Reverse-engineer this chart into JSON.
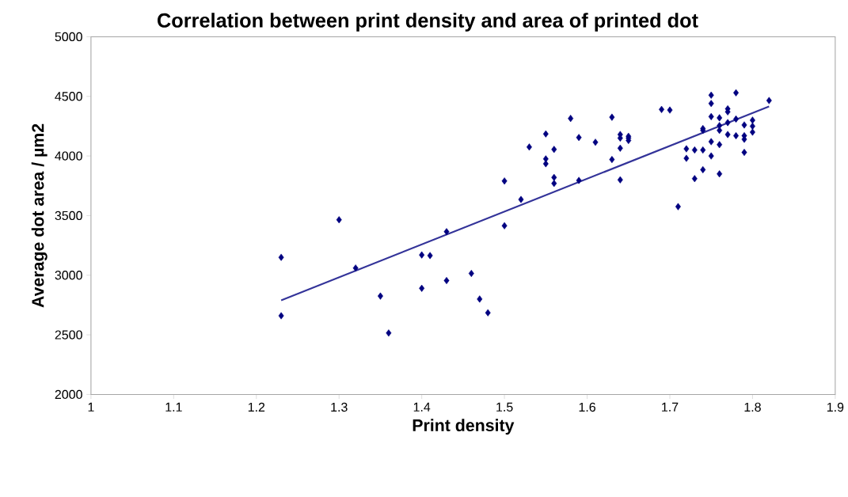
{
  "chart_data": {
    "type": "scatter",
    "title": "Correlation between print density and area of printed dot",
    "xlabel": "Print density",
    "ylabel": "Average dot area / µm2",
    "xlim": [
      1,
      1.9
    ],
    "ylim": [
      2000,
      5000
    ],
    "xticks": [
      1,
      1.1,
      1.2,
      1.3,
      1.4,
      1.5,
      1.6,
      1.7,
      1.8,
      1.9
    ],
    "yticks": [
      2000,
      2500,
      3000,
      3500,
      4000,
      4500,
      5000
    ],
    "series": [
      {
        "marker": "diamond",
        "color": "#000080",
        "x": [
          1.23,
          1.23,
          1.3,
          1.32,
          1.35,
          1.36,
          1.4,
          1.4,
          1.41,
          1.43,
          1.43,
          1.46,
          1.47,
          1.48,
          1.5,
          1.5,
          1.52,
          1.53,
          1.55,
          1.55,
          1.55,
          1.56,
          1.56,
          1.56,
          1.58,
          1.59,
          1.59,
          1.61,
          1.63,
          1.63,
          1.64,
          1.64,
          1.64,
          1.64,
          1.65,
          1.65,
          1.65,
          1.69,
          1.7,
          1.71,
          1.72,
          1.72,
          1.73,
          1.73,
          1.74,
          1.74,
          1.74,
          1.74,
          1.75,
          1.75,
          1.75,
          1.75,
          1.75,
          1.76,
          1.76,
          1.76,
          1.76,
          1.76,
          1.77,
          1.77,
          1.77,
          1.77,
          1.78,
          1.78,
          1.78,
          1.79,
          1.79,
          1.79,
          1.79,
          1.8,
          1.8,
          1.8,
          1.82
        ],
        "values": [
          3150,
          2660,
          3465,
          3060,
          2825,
          2515,
          3170,
          2890,
          3165,
          3365,
          2955,
          3015,
          2800,
          2685,
          3790,
          3415,
          3635,
          4075,
          4185,
          3975,
          3935,
          4055,
          3820,
          3770,
          4315,
          4155,
          3795,
          4115,
          4325,
          3970,
          4180,
          4150,
          4065,
          3800,
          4165,
          4150,
          4130,
          4390,
          4385,
          3575,
          4060,
          3980,
          4050,
          3810,
          4230,
          4215,
          4050,
          3885,
          4510,
          4440,
          4330,
          4120,
          4000,
          4320,
          4255,
          4215,
          4095,
          3850,
          4395,
          4370,
          4280,
          4180,
          4530,
          4310,
          4170,
          4260,
          4170,
          4140,
          4030,
          4300,
          4250,
          4200,
          4465
        ]
      },
      {
        "type": "line",
        "marker": "none",
        "color": "#333399",
        "x": [
          1.23,
          1.82
        ],
        "values": [
          2790,
          4415
        ]
      }
    ]
  }
}
